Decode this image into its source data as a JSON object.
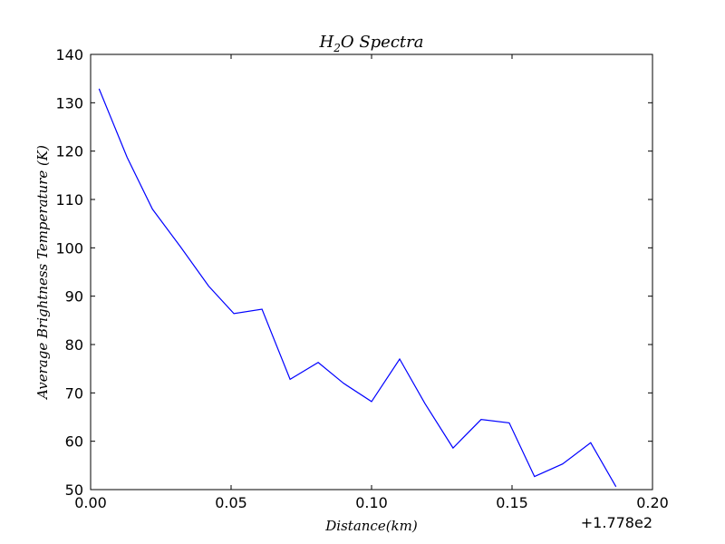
{
  "chart_data": {
    "type": "line",
    "title_main": "H",
    "title_sub": "2",
    "title_rest": "O Spectra",
    "xlabel": "Distance(km)",
    "ylabel": "Average Brightness Temperature (K)",
    "x_offset_label": "+1.778e2",
    "xlim": [
      0.0,
      0.2
    ],
    "ylim": [
      50,
      140
    ],
    "x_ticks": [
      0.0,
      0.05,
      0.1,
      0.15,
      0.2
    ],
    "x_tick_labels": [
      "0.00",
      "0.05",
      "0.10",
      "0.15",
      "0.20"
    ],
    "y_ticks": [
      50,
      60,
      70,
      80,
      90,
      100,
      110,
      120,
      130,
      140
    ],
    "y_tick_labels": [
      "50",
      "60",
      "70",
      "80",
      "90",
      "100",
      "110",
      "120",
      "130",
      "140"
    ],
    "grid": false,
    "series": [
      {
        "color": "#0000ff",
        "x": [
          0.003,
          0.013,
          0.022,
          0.032,
          0.042,
          0.051,
          0.061,
          0.071,
          0.081,
          0.09,
          0.1,
          0.11,
          0.119,
          0.129,
          0.139,
          0.149,
          0.158,
          0.168,
          0.178,
          0.187
        ],
        "y": [
          132.9,
          118.7,
          108.0,
          100.2,
          92.1,
          86.4,
          87.3,
          72.8,
          76.3,
          72.0,
          68.2,
          77.0,
          67.8,
          58.6,
          64.5,
          63.8,
          52.7,
          55.3,
          59.7,
          50.6
        ]
      }
    ]
  }
}
